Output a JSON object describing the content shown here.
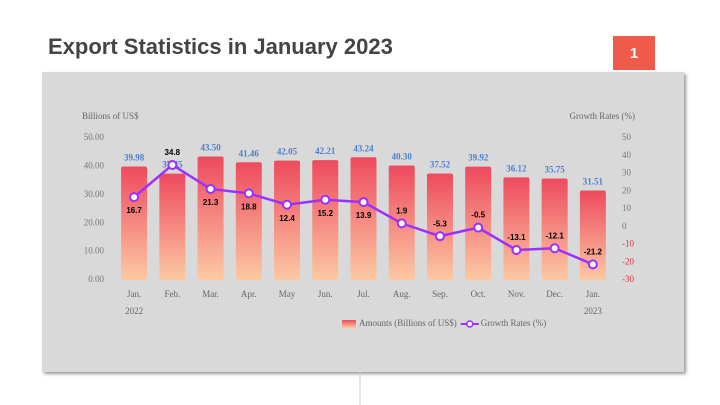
{
  "title": "Export Statistics in January 2023",
  "page_number": "1",
  "chart_data": {
    "type": "bar-line",
    "ylabel": "Billions of US$",
    "y2label": "Growth Rates (%)",
    "categories": [
      "Jan.\n2022",
      "Feb.",
      "Mar.",
      "Apr.",
      "May",
      "Jun.",
      "Jul.",
      "Aug.",
      "Sep.",
      "Oct.",
      "Nov.",
      "Dec.",
      "Jan.\n2023"
    ],
    "series": [
      {
        "name": "Amounts (Billions of US$)",
        "type": "bar",
        "color": "#ee4a5e",
        "values": [
          39.98,
          37.45,
          43.5,
          41.46,
          42.05,
          42.21,
          43.24,
          40.3,
          37.52,
          39.92,
          36.12,
          35.75,
          31.51
        ],
        "value_labels": [
          "39.98",
          "37.45",
          "43.50",
          "41.46",
          "42.05",
          "42.21",
          "43.24",
          "40.30",
          "37.52",
          "39.92",
          "36.12",
          "35.75",
          "31.51"
        ]
      },
      {
        "name": "Growth Rates (%)",
        "type": "line",
        "axis": "y2",
        "color": "#9b30ff",
        "values": [
          16.7,
          34.8,
          21.3,
          18.8,
          12.4,
          15.2,
          13.9,
          1.9,
          -5.3,
          -0.5,
          -13.1,
          -12.1,
          -21.2
        ]
      }
    ],
    "ylim": [
      0,
      50
    ],
    "yticks": [
      {
        "value": 0,
        "label": "0.00"
      },
      {
        "value": 10,
        "label": "10.00"
      },
      {
        "value": 20,
        "label": "20.00"
      },
      {
        "value": 30,
        "label": "30.00"
      },
      {
        "value": 40,
        "label": "40.00"
      },
      {
        "value": 50,
        "label": "50.00"
      }
    ],
    "y2lim": [
      -30,
      50
    ],
    "y2ticks": [
      -30,
      -20,
      -10,
      0,
      10,
      20,
      30,
      40,
      50
    ]
  }
}
